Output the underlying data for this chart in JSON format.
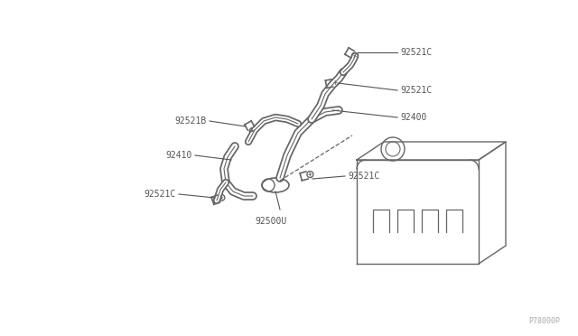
{
  "background_color": "#ffffff",
  "line_color": "#666666",
  "text_color": "#555555",
  "watermark": "P78000P",
  "watermark_color": "#aaaaaa",
  "figsize": [
    6.4,
    3.72
  ],
  "dpi": 100,
  "xlim": [
    0,
    640
  ],
  "ylim": [
    0,
    372
  ]
}
